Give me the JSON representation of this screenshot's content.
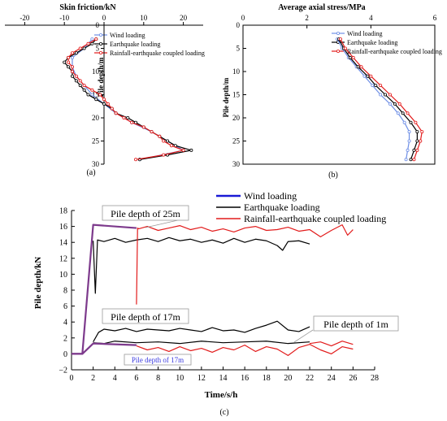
{
  "chart_data": [
    {
      "id": "a",
      "type": "line",
      "panel_label": "(a)",
      "title": "Skin friction/kN",
      "ylabel": "Pile depth/m",
      "xlim": [
        -25,
        25
      ],
      "ylim": [
        30,
        0
      ],
      "x_ticks": [
        "-20",
        "-10",
        "0",
        "10",
        "20"
      ],
      "y_ticks": [
        "0",
        "5",
        "10",
        "15",
        "20",
        "25",
        "30"
      ],
      "legend": {
        "position": "top-right"
      },
      "series": [
        {
          "name": "Wind loading",
          "color": "#6f8fe6",
          "marker": "circle",
          "depth": [
            3,
            5,
            7,
            9,
            11,
            13,
            15,
            17,
            19,
            21,
            23,
            25,
            27,
            29
          ],
          "friction": [
            -3,
            -5,
            -8,
            -8,
            -7,
            -5,
            -3,
            0,
            3,
            7,
            12,
            16,
            20,
            9
          ]
        },
        {
          "name": "Earthquake loading",
          "color": "#000000",
          "marker": "circle",
          "depth": [
            3,
            4,
            5,
            6,
            7,
            8,
            9,
            10,
            11,
            12,
            13,
            14,
            15,
            16,
            17,
            18,
            19,
            20,
            21,
            22,
            23,
            24,
            25,
            26,
            27,
            28,
            29
          ],
          "friction": [
            -2,
            -3,
            -5,
            -7,
            -9,
            -10,
            -9,
            -8,
            -8,
            -7,
            -6,
            -5,
            -4,
            -2,
            0,
            2,
            3,
            6,
            8,
            10,
            12,
            14,
            16,
            18,
            22,
            16,
            9
          ]
        },
        {
          "name": "Rainfall-earthquake coupled loading",
          "color": "#e21b1b",
          "marker": "circle",
          "depth": [
            3,
            4,
            5,
            6,
            7,
            8,
            9,
            10,
            11,
            12,
            13,
            14,
            15,
            16,
            17,
            18,
            19,
            20,
            21,
            22,
            23,
            24,
            25,
            26,
            27,
            28,
            29
          ],
          "friction": [
            -2,
            -4,
            -6,
            -8,
            -9,
            -9,
            -8,
            -8,
            -7,
            -6,
            -5,
            -3,
            -1,
            0,
            1,
            2,
            3,
            5,
            7,
            10,
            12,
            14,
            15,
            17,
            20,
            15,
            8
          ]
        }
      ]
    },
    {
      "id": "b",
      "type": "line",
      "panel_label": "(b)",
      "title": "Average axial stress/MPa",
      "ylabel": "Pile depth/m",
      "xlim": [
        0,
        6
      ],
      "ylim": [
        30,
        0
      ],
      "x_ticks": [
        "0",
        "2",
        "4",
        "6"
      ],
      "y_ticks": [
        "0",
        "5",
        "10",
        "15",
        "20",
        "25",
        "30"
      ],
      "legend": {
        "position": "top-right"
      },
      "series": [
        {
          "name": "Wind loading",
          "color": "#6f8fe6",
          "marker": "circle",
          "depth": [
            3,
            5,
            7,
            9,
            11,
            13,
            15,
            17,
            19,
            21,
            23,
            25,
            27,
            29
          ],
          "stress": [
            2.95,
            3.1,
            3.3,
            3.55,
            3.8,
            4.05,
            4.3,
            4.6,
            4.85,
            5.05,
            5.2,
            5.2,
            5.15,
            5.1
          ]
        },
        {
          "name": "Earthquake loading",
          "color": "#000000",
          "marker": "circle",
          "depth": [
            3,
            5,
            7,
            9,
            11,
            13,
            15,
            17,
            19,
            21,
            23,
            25,
            27,
            29
          ],
          "stress": [
            3.0,
            3.15,
            3.35,
            3.6,
            3.9,
            4.15,
            4.45,
            4.75,
            5.0,
            5.25,
            5.45,
            5.45,
            5.35,
            5.25
          ]
        },
        {
          "name": "Rainfall-earthquake coupled loading",
          "color": "#e21b1b",
          "marker": "circle",
          "depth": [
            3,
            5,
            7,
            9,
            11,
            13,
            15,
            17,
            19,
            21,
            23,
            25,
            27,
            29
          ],
          "stress": [
            3.05,
            3.2,
            3.45,
            3.7,
            4.0,
            4.3,
            4.6,
            4.9,
            5.15,
            5.4,
            5.6,
            5.55,
            5.45,
            5.35
          ]
        }
      ]
    },
    {
      "id": "c",
      "type": "line",
      "panel_label": "(c)",
      "xlabel": "Time/s/h",
      "ylabel": "Pile depth/kN",
      "xlim": [
        0,
        28
      ],
      "ylim": [
        -2,
        18
      ],
      "x_ticks": [
        "0",
        "2",
        "4",
        "6",
        "8",
        "10",
        "12",
        "14",
        "16",
        "18",
        "20",
        "22",
        "24",
        "26",
        "28"
      ],
      "y_ticks": [
        "−2",
        "0",
        "2",
        "4",
        "6",
        "8",
        "10",
        "12",
        "14",
        "16",
        "18"
      ],
      "legend": {
        "position": "top-right"
      },
      "series": [
        {
          "name": "Wind loading",
          "color": "#1a1ad6",
          "groups": [
            {
              "x": [
                0,
                1,
                2,
                6
              ],
              "y": [
                0,
                0,
                16.2,
                15.8
              ]
            },
            {
              "x": [
                0,
                1,
                2,
                6
              ],
              "y": [
                0,
                0,
                1.3,
                1.1
              ]
            }
          ]
        },
        {
          "name": "Earthquake loading",
          "color": "#000000",
          "groups": [
            {
              "x": [
                2,
                2.2,
                2.4,
                3,
                4,
                5,
                6,
                7,
                8,
                9,
                10,
                11,
                12,
                13,
                14,
                15,
                16,
                17,
                18,
                19,
                19.5,
                20,
                21,
                22
              ],
              "y": [
                14.2,
                7.6,
                14.3,
                14.1,
                14.5,
                14.0,
                14.3,
                14.5,
                14.1,
                14.6,
                14.2,
                14.4,
                14.0,
                14.3,
                13.9,
                14.5,
                14.0,
                14.4,
                14.2,
                13.6,
                13.0,
                14.1,
                14.2,
                13.8
              ]
            },
            {
              "x": [
                2,
                2.5,
                3,
                4,
                5,
                6,
                7,
                8,
                9,
                10,
                11,
                12,
                13,
                14,
                15,
                16,
                17,
                18,
                19,
                20,
                21,
                22
              ],
              "y": [
                1.5,
                2.7,
                3.1,
                2.9,
                3.2,
                2.8,
                3.1,
                3.0,
                2.9,
                3.2,
                3.0,
                2.8,
                3.3,
                2.9,
                3.0,
                2.7,
                3.2,
                3.6,
                4.1,
                3.0,
                2.8,
                3.4
              ]
            },
            {
              "x": [
                2,
                3,
                4,
                6,
                8,
                10,
                12,
                14,
                16,
                18,
                20,
                22
              ],
              "y": [
                1.4,
                1.3,
                1.6,
                1.4,
                1.5,
                1.3,
                1.6,
                1.4,
                1.5,
                1.6,
                1.3,
                1.5
              ]
            }
          ]
        },
        {
          "name": "Rainfall-earthquake coupled loading",
          "color": "#e21b1b",
          "groups": [
            {
              "x": [
                6,
                6.1,
                6.2,
                7,
                8,
                9,
                10,
                11,
                12,
                13,
                14,
                15,
                16,
                17,
                18,
                19,
                20,
                21,
                22,
                23,
                24,
                25,
                25.5,
                26
              ],
              "y": [
                6.2,
                15.8,
                15.7,
                16.0,
                15.5,
                15.8,
                16.1,
                15.6,
                15.9,
                15.4,
                15.7,
                15.3,
                15.8,
                16.0,
                15.5,
                15.6,
                15.9,
                15.4,
                15.6,
                14.7,
                15.5,
                16.2,
                14.9,
                15.6
              ]
            },
            {
              "x": [
                6,
                7,
                8,
                9,
                10,
                11,
                12,
                13,
                14,
                15,
                16,
                17,
                18,
                19,
                20,
                21,
                22,
                23,
                24,
                25,
                26
              ],
              "y": [
                1.0,
                0.5,
                0.8,
                0.3,
                0.9,
                0.4,
                0.7,
                0.2,
                0.8,
                0.5,
                1.1,
                0.3,
                0.9,
                0.6,
                -0.2,
                0.8,
                1.2,
                0.5,
                0.0,
                0.9,
                0.6
              ]
            },
            {
              "x": [
                22,
                23,
                24,
                25,
                26
              ],
              "y": [
                1.3,
                1.5,
                1.0,
                1.6,
                1.2
              ]
            }
          ]
        }
      ],
      "annotations": [
        {
          "text": "Pile depth of 25m",
          "boxed": true
        },
        {
          "text": "Pile depth of 17m",
          "boxed": true
        },
        {
          "text": "Pile depth of 1m",
          "boxed": true
        },
        {
          "text": "Pile depth of 17m",
          "boxed": true
        }
      ]
    }
  ]
}
